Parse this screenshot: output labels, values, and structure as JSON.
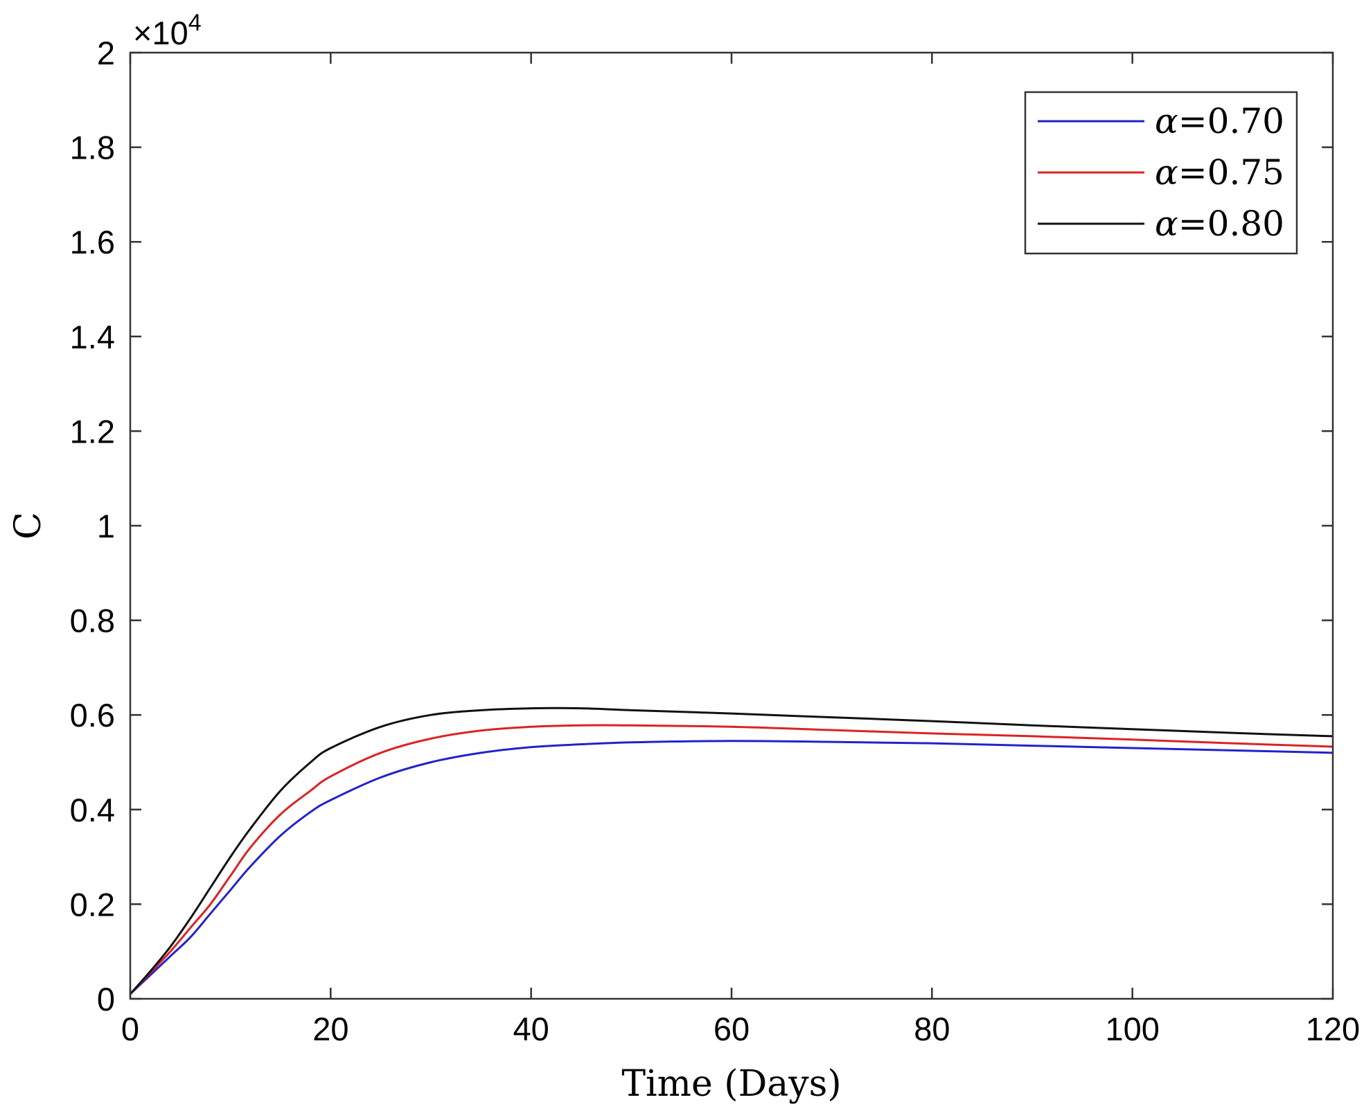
{
  "chart_data": {
    "type": "line",
    "title": "",
    "xlabel": "Time (Days)",
    "ylabel": "C",
    "xlim": [
      0,
      120
    ],
    "ylim": [
      0,
      2
    ],
    "x_ticks": [
      0,
      20,
      40,
      60,
      80,
      100,
      120
    ],
    "x_tick_labels": [
      "0",
      "20",
      "40",
      "60",
      "80",
      "100",
      "120"
    ],
    "y_ticks": [
      0,
      0.2,
      0.4,
      0.6,
      0.8,
      1,
      1.2,
      1.4,
      1.6,
      1.8,
      2
    ],
    "y_tick_labels": [
      "0",
      "0.2",
      "0.4",
      "0.6",
      "0.8",
      "1",
      "1.2",
      "1.4",
      "1.6",
      "1.8",
      "2"
    ],
    "y_exponent_prefix": "×10",
    "y_exponent_power": "4",
    "grid": false,
    "legend_position": "top-right",
    "x": [
      0,
      2,
      4,
      6,
      8,
      10,
      12,
      15,
      18,
      20,
      25,
      30,
      35,
      40,
      45,
      50,
      60,
      70,
      80,
      90,
      100,
      110,
      120
    ],
    "series": [
      {
        "name": "α=0.70",
        "symbol": "α",
        "value_text": "=0.70",
        "color": "#2222cc",
        "values": [
          0.01,
          0.05,
          0.09,
          0.13,
          0.18,
          0.23,
          0.28,
          0.345,
          0.395,
          0.42,
          0.468,
          0.5,
          0.52,
          0.532,
          0.538,
          0.542,
          0.545,
          0.543,
          0.54,
          0.535,
          0.53,
          0.525,
          0.52
        ]
      },
      {
        "name": "α=0.75",
        "symbol": "α",
        "value_text": "=0.75",
        "color": "#dd2222",
        "values": [
          0.01,
          0.055,
          0.1,
          0.15,
          0.2,
          0.26,
          0.32,
          0.39,
          0.44,
          0.47,
          0.52,
          0.55,
          0.567,
          0.575,
          0.578,
          0.578,
          0.575,
          0.568,
          0.561,
          0.555,
          0.548,
          0.54,
          0.533
        ]
      },
      {
        "name": "α=0.80",
        "symbol": "α",
        "value_text": "=0.80",
        "color": "#111111",
        "values": [
          0.01,
          0.058,
          0.11,
          0.17,
          0.235,
          0.3,
          0.36,
          0.44,
          0.5,
          0.53,
          0.575,
          0.6,
          0.61,
          0.614,
          0.614,
          0.61,
          0.603,
          0.595,
          0.587,
          0.578,
          0.57,
          0.562,
          0.555
        ]
      }
    ]
  }
}
